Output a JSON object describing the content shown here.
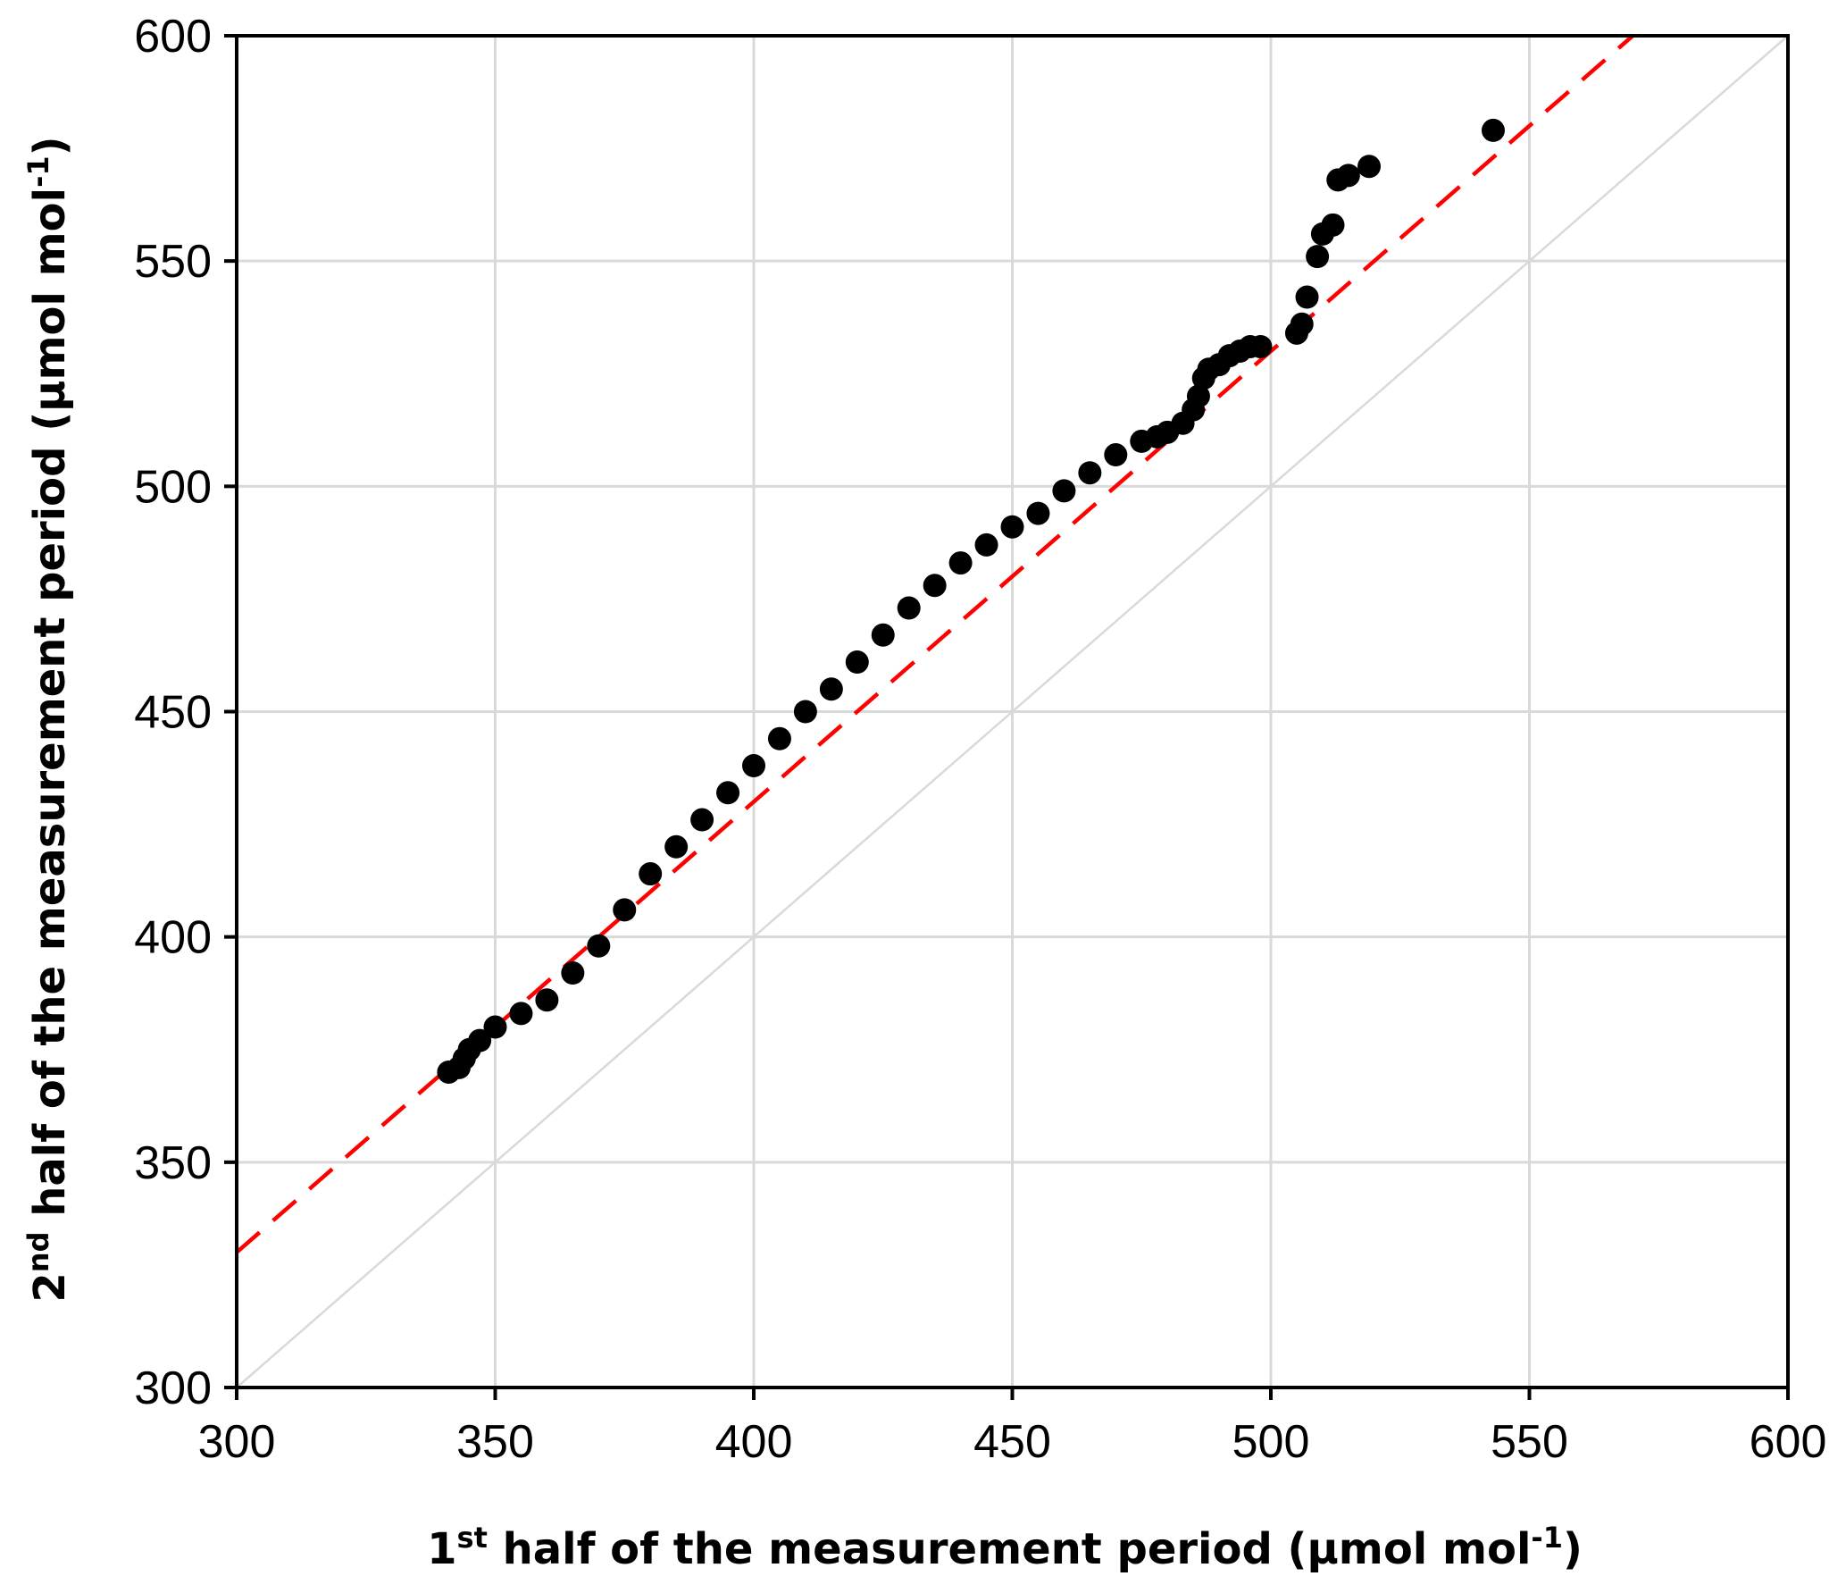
{
  "chart_data": {
    "type": "scatter",
    "title": "",
    "xlabel": {
      "pre": "1",
      "sup": "st",
      "mid": " half of the measurement period (µmol mol",
      "sup2": "-1",
      "post": ")"
    },
    "ylabel": {
      "pre": "2",
      "sup": "nd",
      "mid": " half of the measurement period (µmol mol",
      "sup2": "-1",
      "post": ")"
    },
    "xlim": [
      300,
      600
    ],
    "ylim": [
      300,
      600
    ],
    "xticks": [
      300,
      350,
      400,
      450,
      500,
      550,
      600
    ],
    "yticks": [
      300,
      350,
      400,
      450,
      500,
      550,
      600
    ],
    "tick_labels_x": [
      "300",
      "350",
      "400",
      "450",
      "500",
      "550",
      "600"
    ],
    "tick_labels_y": [
      "300",
      "350",
      "400",
      "450",
      "500",
      "550",
      "600"
    ],
    "grid": true,
    "reference_lines": [
      {
        "kind": "one-to-one",
        "style": "solid",
        "color": "#d9d9d9",
        "points": [
          [
            300,
            300
          ],
          [
            600,
            600
          ]
        ]
      },
      {
        "kind": "fit",
        "style": "dashed",
        "color": "#ff0000",
        "points": [
          [
            300,
            330
          ],
          [
            570,
            600
          ]
        ]
      }
    ],
    "series": [
      {
        "marker": "circle",
        "color": "#000000",
        "x": [
          341,
          343,
          344,
          345,
          347,
          350,
          355,
          360,
          365,
          370,
          375,
          380,
          385,
          390,
          395,
          400,
          405,
          410,
          415,
          420,
          425,
          430,
          435,
          440,
          445,
          450,
          455,
          460,
          465,
          470,
          475,
          478,
          480,
          483,
          485,
          486,
          487,
          488,
          490,
          492,
          494,
          496,
          498,
          505,
          506,
          507,
          509,
          510,
          512,
          513,
          515,
          519,
          543
        ],
        "y": [
          370,
          371,
          373,
          375,
          377,
          380,
          383,
          386,
          392,
          398,
          406,
          414,
          420,
          426,
          432,
          438,
          444,
          450,
          455,
          461,
          467,
          473,
          478,
          483,
          487,
          491,
          494,
          499,
          503,
          507,
          510,
          511,
          512,
          514,
          517,
          520,
          524,
          526,
          527,
          529,
          530,
          531,
          531,
          534,
          536,
          542,
          551,
          556,
          558,
          568,
          569,
          571,
          579
        ]
      }
    ],
    "colors": {
      "axis": "#000000",
      "grid": "#d9d9d9",
      "marker": "#000000",
      "fit_line": "#ff0000"
    }
  }
}
